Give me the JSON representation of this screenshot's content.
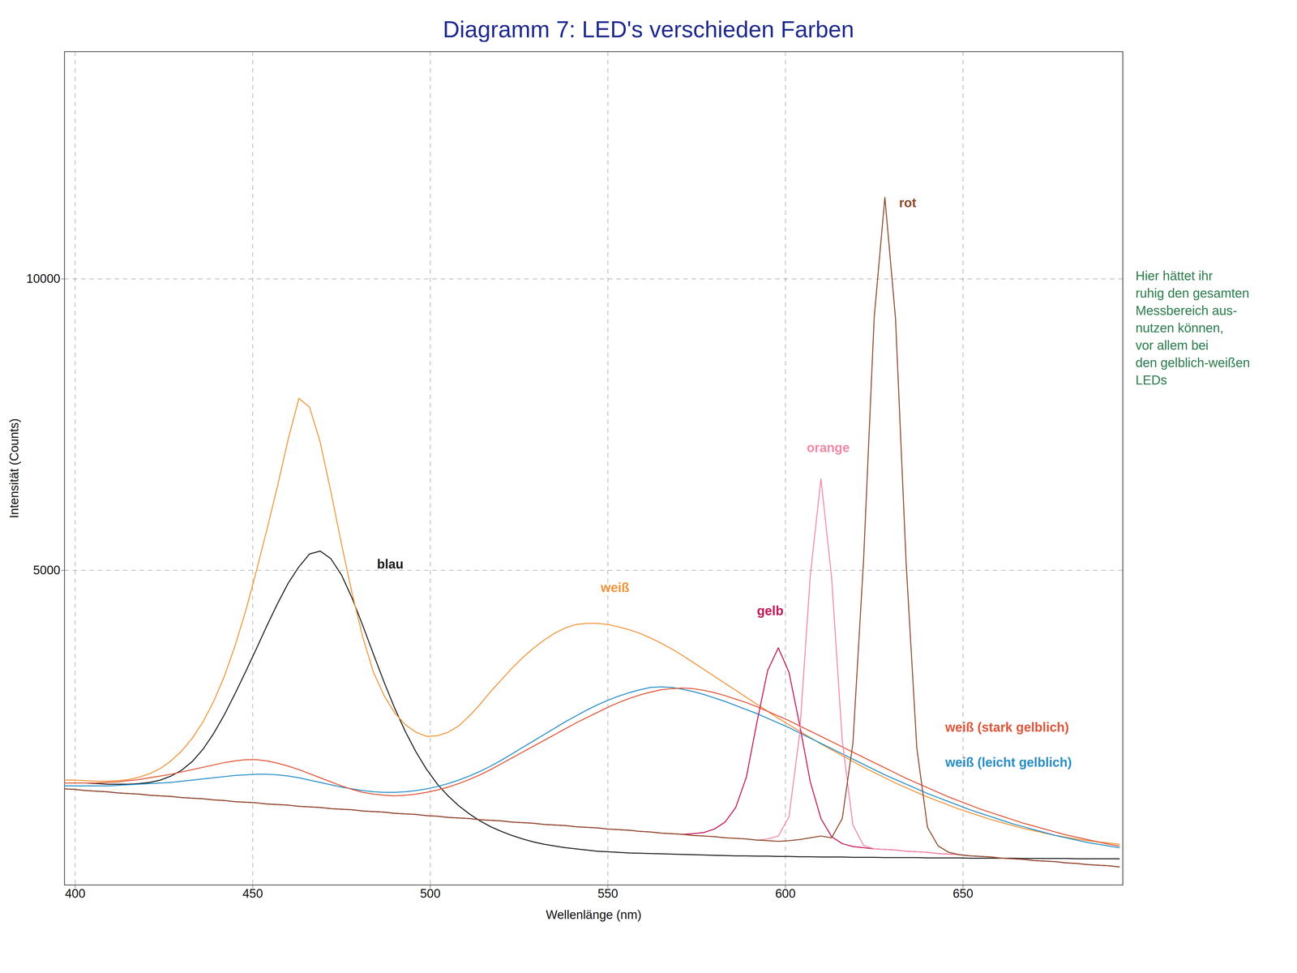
{
  "chart_data": {
    "type": "line",
    "title": "Diagramm 7: LED's verschieden Farben",
    "x_label": "Wellenlänge (nm)",
    "y_label": "Intensität (Counts)",
    "xlim": [
      397,
      695
    ],
    "xticks": [
      400,
      450,
      500,
      550,
      600,
      650
    ],
    "ylim": [
      -400,
      13900
    ],
    "yticks": [
      5000,
      10000
    ],
    "grid": true,
    "x": [
      397,
      400,
      403,
      406,
      409,
      412,
      415,
      418,
      421,
      424,
      427,
      430,
      433,
      436,
      439,
      442,
      445,
      448,
      451,
      454,
      457,
      460,
      463,
      466,
      469,
      472,
      475,
      478,
      481,
      484,
      487,
      490,
      493,
      496,
      499,
      502,
      505,
      508,
      511,
      514,
      517,
      520,
      523,
      526,
      529,
      532,
      535,
      538,
      541,
      544,
      547,
      550,
      553,
      556,
      559,
      562,
      565,
      568,
      571,
      574,
      577,
      580,
      583,
      586,
      589,
      592,
      595,
      598,
      601,
      604,
      607,
      610,
      613,
      616,
      619,
      622,
      625,
      628,
      631,
      634,
      637,
      640,
      643,
      646,
      649,
      652,
      655,
      658,
      661,
      664,
      667,
      670,
      673,
      676,
      679,
      682,
      685,
      688,
      691,
      694
    ],
    "series": [
      {
        "name": "blau",
        "color": "#1a1a1a",
        "label_x": 485,
        "label_y": 5100,
        "values": [
          1350,
          1350,
          1350,
          1340,
          1330,
          1330,
          1330,
          1340,
          1360,
          1400,
          1470,
          1570,
          1720,
          1930,
          2200,
          2520,
          2880,
          3260,
          3650,
          4050,
          4430,
          4780,
          5060,
          5280,
          5330,
          5200,
          4920,
          4520,
          4050,
          3560,
          3080,
          2630,
          2230,
          1880,
          1580,
          1330,
          1130,
          960,
          820,
          700,
          600,
          520,
          450,
          390,
          340,
          300,
          270,
          240,
          220,
          200,
          180,
          170,
          160,
          150,
          145,
          140,
          135,
          130,
          125,
          120,
          115,
          110,
          105,
          100,
          100,
          95,
          95,
          90,
          90,
          85,
          85,
          80,
          80,
          80,
          75,
          75,
          75,
          70,
          70,
          70,
          70,
          65,
          65,
          65,
          65,
          60,
          60,
          60,
          60,
          60,
          55,
          55,
          55,
          55,
          55,
          50,
          50,
          50,
          50,
          50
        ]
      },
      {
        "name": "weiß",
        "color": "#f0963c",
        "label_x": 548,
        "label_y": 4700,
        "values": [
          1400,
          1400,
          1390,
          1380,
          1380,
          1390,
          1410,
          1450,
          1510,
          1600,
          1730,
          1900,
          2120,
          2400,
          2750,
          3180,
          3700,
          4300,
          4980,
          5700,
          6450,
          7250,
          7950,
          7800,
          7200,
          6350,
          5450,
          4600,
          3850,
          3250,
          2850,
          2550,
          2350,
          2220,
          2150,
          2160,
          2220,
          2330,
          2500,
          2700,
          2920,
          3120,
          3320,
          3500,
          3660,
          3800,
          3920,
          4010,
          4070,
          4090,
          4090,
          4070,
          4030,
          3980,
          3920,
          3840,
          3750,
          3650,
          3540,
          3420,
          3300,
          3180,
          3060,
          2940,
          2820,
          2700,
          2580,
          2460,
          2350,
          2240,
          2130,
          2020,
          1920,
          1820,
          1720,
          1620,
          1530,
          1440,
          1350,
          1270,
          1190,
          1110,
          1040,
          970,
          900,
          840,
          780,
          720,
          670,
          620,
          570,
          530,
          490,
          450,
          420,
          390,
          360,
          340,
          320,
          300
        ]
      },
      {
        "name": "weiß (leicht gelblich)",
        "color": "#2a8fc7",
        "label_x": 645,
        "label_y": 1700,
        "values": [
          1300,
          1300,
          1300,
          1300,
          1300,
          1310,
          1320,
          1330,
          1340,
          1350,
          1360,
          1380,
          1400,
          1420,
          1440,
          1460,
          1480,
          1490,
          1500,
          1500,
          1490,
          1470,
          1440,
          1400,
          1360,
          1320,
          1280,
          1250,
          1220,
          1200,
          1190,
          1190,
          1200,
          1220,
          1250,
          1290,
          1340,
          1400,
          1470,
          1550,
          1640,
          1740,
          1850,
          1960,
          2070,
          2180,
          2290,
          2400,
          2500,
          2600,
          2690,
          2770,
          2840,
          2900,
          2950,
          2990,
          3000,
          2990,
          2960,
          2920,
          2870,
          2810,
          2750,
          2680,
          2610,
          2540,
          2460,
          2380,
          2300,
          2210,
          2120,
          2030,
          1940,
          1850,
          1760,
          1670,
          1580,
          1490,
          1410,
          1330,
          1250,
          1170,
          1100,
          1030,
          960,
          890,
          830,
          770,
          710,
          650,
          600,
          550,
          500,
          450,
          410,
          370,
          330,
          300,
          270,
          240
        ]
      },
      {
        "name": "weiß (stark gelblich)",
        "color": "#e0583c",
        "label_x": 645,
        "label_y": 2300,
        "values": [
          1350,
          1350,
          1350,
          1350,
          1360,
          1370,
          1390,
          1410,
          1440,
          1470,
          1500,
          1540,
          1580,
          1620,
          1660,
          1700,
          1730,
          1750,
          1750,
          1730,
          1690,
          1640,
          1580,
          1510,
          1440,
          1370,
          1300,
          1240,
          1190,
          1160,
          1140,
          1130,
          1140,
          1160,
          1190,
          1230,
          1280,
          1340,
          1410,
          1490,
          1580,
          1680,
          1780,
          1880,
          1980,
          2080,
          2180,
          2280,
          2380,
          2470,
          2560,
          2650,
          2730,
          2800,
          2860,
          2910,
          2950,
          2970,
          2980,
          2970,
          2940,
          2900,
          2850,
          2790,
          2730,
          2660,
          2580,
          2500,
          2420,
          2330,
          2240,
          2150,
          2060,
          1970,
          1880,
          1790,
          1700,
          1610,
          1520,
          1430,
          1350,
          1270,
          1190,
          1110,
          1040,
          970,
          900,
          840,
          780,
          720,
          660,
          610,
          560,
          510,
          460,
          420,
          380,
          340,
          300,
          270
        ]
      },
      {
        "name": "gelb",
        "color": "#c2185b",
        "label_x": 592,
        "label_y": 4300,
        "values": [
          1250,
          1240,
          1220,
          1210,
          1200,
          1180,
          1170,
          1160,
          1140,
          1130,
          1120,
          1100,
          1090,
          1080,
          1060,
          1050,
          1030,
          1020,
          1010,
          990,
          980,
          970,
          950,
          940,
          930,
          910,
          900,
          890,
          870,
          860,
          850,
          830,
          820,
          810,
          790,
          780,
          760,
          750,
          740,
          720,
          710,
          700,
          680,
          670,
          660,
          640,
          630,
          620,
          600,
          590,
          580,
          560,
          550,
          540,
          520,
          510,
          490,
          480,
          470,
          480,
          500,
          560,
          680,
          930,
          1450,
          2400,
          3280,
          3670,
          3250,
          2350,
          1370,
          740,
          430,
          310,
          260,
          240,
          220,
          210,
          200,
          180,
          170,
          160,
          140,
          130,
          120,
          100,
          90,
          80,
          60,
          50,
          40,
          20,
          10,
          0,
          -20,
          -30,
          -50,
          -60,
          -70,
          -90
        ]
      },
      {
        "name": "orange",
        "color": "#f08aa8",
        "label_x": 606,
        "label_y": 7100,
        "values": [
          1250,
          1240,
          1220,
          1210,
          1200,
          1180,
          1170,
          1160,
          1140,
          1130,
          1120,
          1100,
          1090,
          1080,
          1060,
          1050,
          1030,
          1020,
          1010,
          990,
          980,
          970,
          950,
          940,
          930,
          910,
          900,
          890,
          870,
          860,
          850,
          830,
          820,
          810,
          790,
          780,
          760,
          750,
          740,
          720,
          710,
          700,
          680,
          670,
          660,
          640,
          630,
          620,
          600,
          590,
          580,
          560,
          550,
          540,
          520,
          510,
          490,
          480,
          470,
          450,
          440,
          430,
          410,
          400,
          390,
          370,
          390,
          440,
          770,
          2190,
          4910,
          6570,
          4880,
          2080,
          630,
          280,
          220,
          210,
          200,
          180,
          170,
          160,
          140,
          130,
          120,
          100,
          90,
          80,
          60,
          50,
          40,
          20,
          10,
          0,
          -20,
          -30,
          -50,
          -60,
          -70,
          -90
        ]
      },
      {
        "name": "rot",
        "color": "#8b4a2b",
        "label_x": 632,
        "label_y": 11300,
        "values": [
          1250,
          1240,
          1220,
          1210,
          1200,
          1180,
          1170,
          1160,
          1140,
          1130,
          1120,
          1100,
          1090,
          1080,
          1060,
          1050,
          1030,
          1020,
          1010,
          990,
          980,
          970,
          950,
          940,
          930,
          910,
          900,
          890,
          870,
          860,
          850,
          830,
          820,
          810,
          790,
          780,
          760,
          750,
          740,
          720,
          710,
          700,
          680,
          670,
          660,
          640,
          630,
          620,
          600,
          590,
          580,
          560,
          550,
          540,
          520,
          510,
          490,
          480,
          470,
          450,
          440,
          430,
          410,
          400,
          390,
          370,
          360,
          350,
          360,
          380,
          410,
          440,
          410,
          740,
          2030,
          5170,
          9340,
          11400,
          9320,
          5110,
          1950,
          590,
          270,
          160,
          120,
          100,
          90,
          80,
          60,
          50,
          40,
          20,
          10,
          0,
          -20,
          -30,
          -50,
          -60,
          -70,
          -90
        ]
      }
    ],
    "annotations": [
      {
        "color": "#2e7d4f",
        "lines": [
          "Hier hättet ihr",
          "ruhig den gesamten",
          "Messbereich aus-",
          "nutzen können,",
          "vor allem bei",
          "den gelblich-weißen",
          "LEDs"
        ]
      }
    ]
  }
}
